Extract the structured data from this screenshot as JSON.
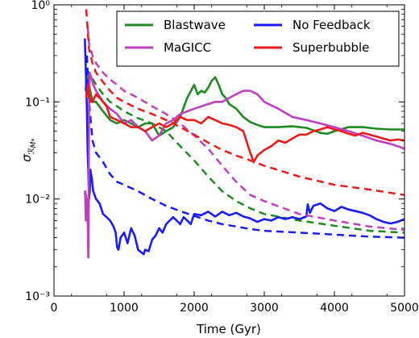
{
  "chart_data": {
    "type": "line",
    "xlabel": "Time (Gyr)",
    "ylabel": "σ_RM*",
    "xlim": [
      0,
      5000
    ],
    "ylim": [
      0.001,
      1
    ],
    "yscale": "log",
    "x_ticks": [
      0,
      1000,
      2000,
      3000,
      4000,
      5000
    ],
    "x_tick_labels": [
      "0",
      "1000",
      "2000",
      "3000",
      "4000",
      "5000"
    ],
    "y_ticks": [
      0.001,
      0.01,
      0.1,
      1
    ],
    "y_tick_labels": [
      "10⁻³",
      "10⁻²",
      "10⁻¹",
      "10⁰"
    ],
    "legend": {
      "position": "top-right",
      "entries": [
        {
          "label": "Blastwave",
          "color": "#1f8a1f"
        },
        {
          "label": "No Feedback",
          "color": "#1a1aff"
        },
        {
          "label": "MaGICC",
          "color": "#bf3fbf"
        },
        {
          "label": "Superbubble",
          "color": "#ee1a1a"
        }
      ]
    },
    "series": [
      {
        "name": "Blastwave",
        "color": "#1f8a1f",
        "style": "solid",
        "x": [
          450,
          470,
          500,
          550,
          600,
          700,
          800,
          900,
          1000,
          1100,
          1200,
          1300,
          1400,
          1500,
          1600,
          1700,
          1800,
          1900,
          2000,
          2050,
          2100,
          2150,
          2200,
          2250,
          2300,
          2350,
          2400,
          2450,
          2500,
          2600,
          2700,
          2800,
          2900,
          3000,
          3200,
          3400,
          3600,
          3800,
          3900,
          4000,
          4200,
          4400,
          4600,
          4800,
          5000
        ],
        "y": [
          0.13,
          0.2,
          0.15,
          0.1,
          0.1,
          0.08,
          0.065,
          0.06,
          0.065,
          0.06,
          0.055,
          0.06,
          0.06,
          0.045,
          0.05,
          0.055,
          0.07,
          0.11,
          0.15,
          0.12,
          0.13,
          0.125,
          0.14,
          0.165,
          0.18,
          0.15,
          0.12,
          0.11,
          0.095,
          0.085,
          0.07,
          0.062,
          0.058,
          0.055,
          0.055,
          0.056,
          0.054,
          0.048,
          0.047,
          0.05,
          0.055,
          0.055,
          0.053,
          0.052,
          0.052
        ]
      },
      {
        "name": "Blastwave",
        "color": "#1f8a1f",
        "style": "dashed",
        "x": [
          450,
          500,
          600,
          700,
          800,
          900,
          1000,
          1200,
          1400,
          1600,
          1800,
          2000,
          2200,
          2400,
          2600,
          2800,
          3000,
          3500,
          4000,
          4500,
          5000
        ],
        "y": [
          0.22,
          0.2,
          0.15,
          0.12,
          0.1,
          0.09,
          0.08,
          0.068,
          0.06,
          0.05,
          0.035,
          0.025,
          0.017,
          0.012,
          0.0095,
          0.008,
          0.007,
          0.006,
          0.0053,
          0.0047,
          0.0045
        ]
      },
      {
        "name": "No Feedback",
        "color": "#1a1aff",
        "style": "solid",
        "x": [
          440,
          455,
          470,
          480,
          490,
          500,
          510,
          520,
          540,
          560,
          600,
          650,
          700,
          750,
          800,
          850,
          880,
          900,
          920,
          950,
          1000,
          1050,
          1100,
          1150,
          1200,
          1250,
          1280,
          1300,
          1350,
          1400,
          1450,
          1500,
          1550,
          1600,
          1650,
          1700,
          1750,
          1800,
          1850,
          1900,
          1950,
          2000,
          2100,
          2200,
          2300,
          2400,
          2500,
          2600,
          2700,
          2800,
          2900,
          3000,
          3100,
          3200,
          3300,
          3400,
          3500,
          3600,
          3620,
          3650,
          3700,
          3800,
          3900,
          4000,
          4100,
          4200,
          4300,
          4400,
          4500,
          4600,
          4700,
          4800,
          4900,
          5000
        ],
        "y": [
          0.45,
          0.2,
          0.08,
          0.03,
          0.02,
          0.01,
          0.012,
          0.02,
          0.016,
          0.012,
          0.01,
          0.009,
          0.007,
          0.0065,
          0.006,
          0.0052,
          0.0045,
          0.0032,
          0.003,
          0.004,
          0.0045,
          0.0035,
          0.005,
          0.0042,
          0.003,
          0.0028,
          0.0027,
          0.003,
          0.0029,
          0.0038,
          0.0042,
          0.005,
          0.0045,
          0.0055,
          0.006,
          0.0065,
          0.006,
          0.0055,
          0.0065,
          0.006,
          0.0055,
          0.007,
          0.0068,
          0.0074,
          0.0066,
          0.0074,
          0.0068,
          0.0072,
          0.0066,
          0.0063,
          0.0058,
          0.0062,
          0.006,
          0.0065,
          0.0062,
          0.0065,
          0.0062,
          0.0066,
          0.0088,
          0.0072,
          0.0085,
          0.009,
          0.008,
          0.0075,
          0.0083,
          0.0078,
          0.0075,
          0.0072,
          0.0068,
          0.0062,
          0.0058,
          0.0056,
          0.0058,
          0.0062
        ]
      },
      {
        "name": "No Feedback",
        "color": "#1a1aff",
        "style": "dashed",
        "x": [
          470,
          500,
          550,
          600,
          700,
          800,
          900,
          1000,
          1200,
          1400,
          1600,
          1800,
          2000,
          2200,
          2400,
          2600,
          2800,
          3000,
          3500,
          4000,
          4500,
          5000
        ],
        "y": [
          0.3,
          0.1,
          0.04,
          0.03,
          0.024,
          0.018,
          0.015,
          0.014,
          0.012,
          0.01,
          0.0085,
          0.0075,
          0.0067,
          0.006,
          0.0055,
          0.0052,
          0.0049,
          0.0047,
          0.0045,
          0.0043,
          0.0041,
          0.004
        ]
      },
      {
        "name": "MaGICC",
        "color": "#bf3fbf",
        "style": "solid",
        "x": [
          440,
          445,
          450,
          455,
          460,
          465,
          470,
          475,
          480,
          485,
          490,
          495,
          500,
          510,
          530,
          560,
          600,
          700,
          800,
          900,
          1000,
          1100,
          1200,
          1300,
          1400,
          1500,
          1600,
          1700,
          1800,
          1900,
          2000,
          2100,
          2200,
          2300,
          2400,
          2500,
          2600,
          2700,
          2800,
          2900,
          3000,
          3200,
          3400,
          3600,
          3800,
          4000,
          4200,
          4400,
          4600,
          4800,
          5000
        ],
        "y": [
          0.011,
          0.012,
          0.007,
          0.006,
          0.011,
          0.008,
          0.006,
          0.01,
          0.0065,
          0.004,
          0.0025,
          0.008,
          0.1,
          0.2,
          0.18,
          0.15,
          0.13,
          0.1,
          0.085,
          0.075,
          0.06,
          0.065,
          0.055,
          0.05,
          0.04,
          0.045,
          0.06,
          0.065,
          0.075,
          0.08,
          0.085,
          0.09,
          0.095,
          0.1,
          0.1,
          0.11,
          0.12,
          0.13,
          0.13,
          0.12,
          0.1,
          0.085,
          0.07,
          0.065,
          0.06,
          0.055,
          0.05,
          0.045,
          0.04,
          0.037,
          0.033
        ]
      },
      {
        "name": "MaGICC",
        "color": "#bf3fbf",
        "style": "dashed",
        "x": [
          480,
          500,
          550,
          600,
          700,
          800,
          900,
          1000,
          1200,
          1400,
          1600,
          1800,
          2000,
          2200,
          2400,
          2600,
          2800,
          3000,
          3500,
          4000,
          4500,
          5000
        ],
        "y": [
          0.6,
          0.4,
          0.3,
          0.25,
          0.2,
          0.17,
          0.15,
          0.13,
          0.11,
          0.09,
          0.075,
          0.06,
          0.045,
          0.033,
          0.022,
          0.015,
          0.011,
          0.0095,
          0.007,
          0.006,
          0.0052,
          0.0048
        ]
      },
      {
        "name": "Superbubble",
        "color": "#ee1a1a",
        "style": "solid",
        "x": [
          460,
          480,
          500,
          520,
          550,
          600,
          650,
          700,
          750,
          800,
          900,
          1000,
          1100,
          1200,
          1300,
          1400,
          1500,
          1600,
          1700,
          1800,
          1900,
          2000,
          2100,
          2200,
          2300,
          2400,
          2500,
          2600,
          2700,
          2800,
          2850,
          2900,
          3000,
          3100,
          3200,
          3300,
          3400,
          3500,
          3600,
          3700,
          3800,
          3900,
          4000,
          4100,
          4200,
          4300,
          4400,
          4500,
          4600,
          4700,
          4800,
          4900,
          5000
        ],
        "y": [
          0.11,
          0.15,
          0.13,
          0.1,
          0.1,
          0.12,
          0.11,
          0.1,
          0.09,
          0.07,
          0.065,
          0.06,
          0.055,
          0.055,
          0.05,
          0.055,
          0.06,
          0.055,
          0.06,
          0.07,
          0.065,
          0.065,
          0.06,
          0.07,
          0.065,
          0.06,
          0.058,
          0.055,
          0.05,
          0.03,
          0.024,
          0.028,
          0.032,
          0.035,
          0.04,
          0.038,
          0.042,
          0.046,
          0.046,
          0.05,
          0.052,
          0.055,
          0.052,
          0.05,
          0.047,
          0.045,
          0.048,
          0.046,
          0.044,
          0.042,
          0.04,
          0.041,
          0.04
        ]
      },
      {
        "name": "Superbubble",
        "color": "#ee1a1a",
        "style": "dashed",
        "x": [
          460,
          500,
          550,
          600,
          700,
          800,
          900,
          1000,
          1200,
          1400,
          1600,
          1800,
          2000,
          2200,
          2400,
          2600,
          2800,
          3000,
          3500,
          4000,
          4500,
          5000
        ],
        "y": [
          0.9,
          0.35,
          0.25,
          0.2,
          0.16,
          0.13,
          0.11,
          0.1,
          0.085,
          0.075,
          0.065,
          0.055,
          0.046,
          0.038,
          0.032,
          0.028,
          0.025,
          0.022,
          0.017,
          0.014,
          0.0125,
          0.011
        ]
      }
    ]
  }
}
